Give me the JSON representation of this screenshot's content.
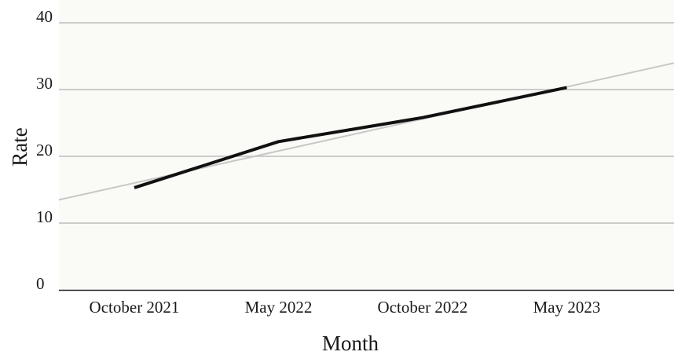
{
  "chart_data": {
    "type": "line",
    "title": "",
    "xlabel": "Month",
    "ylabel": "Rate",
    "categories": [
      "October 2021",
      "May 2022",
      "October 2022",
      "May 2023"
    ],
    "ylim": [
      0,
      40
    ],
    "yticks": [
      0,
      10,
      20,
      30,
      40
    ],
    "grid": true,
    "legend": "none",
    "series": [
      {
        "values": [
          15.3,
          22.2,
          25.8,
          30.3
        ],
        "color": "#111111"
      }
    ],
    "trendline": {
      "color": "#c8c8c8",
      "slope_per_category": 4.8,
      "intercept_at_first_category": 16.0
    },
    "colors": {
      "plot_background": "#fafaf7",
      "gridline": "#cccccc",
      "axis": "#222222"
    }
  }
}
